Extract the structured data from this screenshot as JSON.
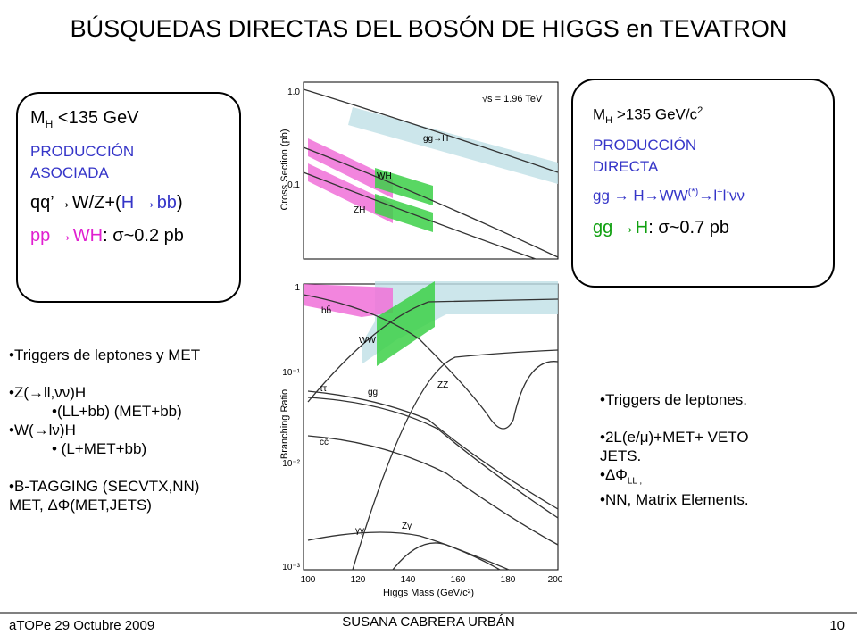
{
  "header": {
    "title": "BÚSQUEDAS DIRECTAS DEL BOSÓN DE HIGGS en TEVATRON"
  },
  "left_box": {
    "mass": {
      "main": "M",
      "sub": "H",
      "rest": " <135 GeV"
    },
    "production": "PRODUCCIÓN ASOCIADA",
    "process": {
      "a": "qq’→W/Z+(",
      "b": "H →bb",
      "c": ")"
    },
    "cross_section": {
      "a": "pp →WH",
      "b": ": σ~0.2 pb"
    }
  },
  "right_box": {
    "mass": {
      "main": "M",
      "sub": "H",
      "rest": " >135 GeV/c",
      "sup": "2"
    },
    "production": "PRODUCCIÓN DIRECTA",
    "process": {
      "a": "gg → H→WW",
      "sup1": "(*)",
      "b": "→l",
      "sup2": "+",
      "c": "l",
      "sup3": "-",
      "d": "νν"
    },
    "cross_section": {
      "a": "gg →H",
      "b": ": σ~0.7 pb"
    }
  },
  "left_bullets": [
    "•Triggers de leptones y MET",
    "•Z(→ll,νν)H",
    "•(LL+bb) (MET+bb)",
    "•W(→lν)H",
    "• (L+MET+bb)",
    "•B-TAGGING (SECVTX,NN)",
    "MET, ΔΦ(MET,JETS)"
  ],
  "right_bullets": [
    "•Triggers de leptones.",
    "•2L(e/μ)+MET+ VETO",
    "JETS.",
    "•ΔΦ",
    "LL ,",
    "•NN, Matrix Elements."
  ],
  "top_plot": {
    "y_label": "Cross Section (pb)",
    "yticks": [
      "1.0",
      "0.1"
    ],
    "energy": "√s = 1.96 TeV",
    "labels": [
      "gg→H",
      "WH",
      "ZH"
    ]
  },
  "bottom_plot": {
    "y_label": "Branching Ratio",
    "yticks": [
      "1",
      "10⁻¹",
      "10⁻²",
      "10⁻³"
    ],
    "xticks": [
      "100",
      "120",
      "140",
      "160",
      "180",
      "200"
    ],
    "x_label": "Higgs Mass (GeV/c²)",
    "labels": [
      "bb̄",
      "WW",
      "ττ",
      "gg",
      "ZZ",
      "cc̄",
      "γγ",
      "Zγ"
    ]
  },
  "footer": {
    "left": "aTOPe 29 Octubre 2009",
    "center": "SUSANA CABRERA URBÁN",
    "page": "10"
  }
}
